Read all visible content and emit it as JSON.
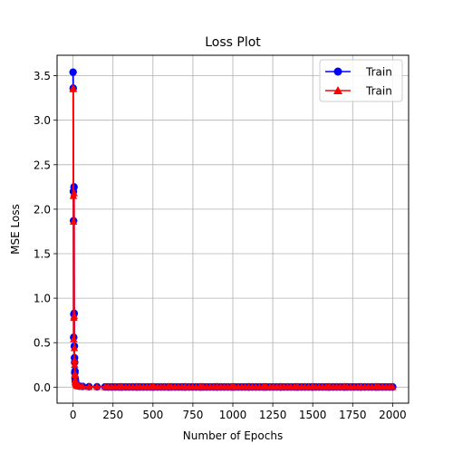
{
  "chart_data": {
    "type": "line",
    "title": "Loss Plot",
    "xlabel": "Number of Epochs",
    "ylabel": "MSE Loss",
    "xlim": [
      -100,
      2100
    ],
    "ylim": [
      -0.18,
      3.73
    ],
    "xticks": [
      0,
      250,
      500,
      750,
      1000,
      1250,
      1500,
      1750,
      2000
    ],
    "yticks": [
      0.0,
      0.5,
      1.0,
      1.5,
      2.0,
      2.5,
      3.0,
      3.5
    ],
    "xtick_labels": [
      "0",
      "250",
      "500",
      "750",
      "1000",
      "1250",
      "1500",
      "1750",
      "2000"
    ],
    "ytick_labels": [
      "0.0",
      "0.5",
      "1.0",
      "1.5",
      "2.0",
      "2.5",
      "3.0",
      "3.5"
    ],
    "grid": true,
    "legend_position": "top-right",
    "series": [
      {
        "name": "Train",
        "color": "#0000ff",
        "marker": "circle",
        "x": [
          0,
          1,
          2,
          3,
          4,
          5,
          6,
          7,
          8,
          9,
          10,
          11,
          12,
          13,
          14,
          15,
          17,
          20,
          25,
          30,
          40,
          60,
          100,
          150,
          200,
          300,
          400,
          500,
          600,
          700,
          800,
          900,
          1000,
          1100,
          1200,
          1300,
          1400,
          1500,
          1600,
          1700,
          1800,
          1900,
          2000
        ],
        "y": [
          3.54,
          3.36,
          2.2,
          1.87,
          0.56,
          0.82,
          2.25,
          0.83,
          0.46,
          0.33,
          0.28,
          0.16,
          0.18,
          0.1,
          0.08,
          0.06,
          0.05,
          0.03,
          0.02,
          0.015,
          0.01,
          0.008,
          0.005,
          0.004,
          0.003,
          0.002,
          0.002,
          0.002,
          0.002,
          0.002,
          0.002,
          0.002,
          0.002,
          0.002,
          0.002,
          0.002,
          0.002,
          0.002,
          0.002,
          0.002,
          0.002,
          0.002,
          0.002
        ]
      },
      {
        "name": "Train",
        "color": "#ff0000",
        "marker": "triangle",
        "x": [
          0,
          1,
          2,
          3,
          4,
          5,
          6,
          7,
          8,
          9,
          10,
          11,
          12,
          13,
          14,
          15,
          17,
          20,
          25,
          30,
          40,
          60,
          100,
          150,
          200,
          300,
          400,
          500,
          600,
          700,
          800,
          900,
          1000,
          1100,
          1200,
          1300,
          1400,
          1500,
          1600,
          1700,
          1800,
          1900,
          2000
        ],
        "y": [
          3.35,
          3.36,
          2.15,
          1.86,
          0.54,
          0.78,
          2.18,
          0.8,
          0.44,
          0.3,
          0.25,
          0.14,
          0.15,
          0.08,
          0.06,
          0.05,
          0.04,
          0.025,
          0.015,
          0.012,
          0.008,
          0.006,
          0.004,
          0.003,
          0.002,
          0.002,
          0.002,
          0.002,
          0.002,
          0.002,
          0.002,
          0.002,
          0.002,
          0.002,
          0.002,
          0.002,
          0.002,
          0.002,
          0.002,
          0.002,
          0.002,
          0.002,
          0.002
        ]
      }
    ]
  }
}
